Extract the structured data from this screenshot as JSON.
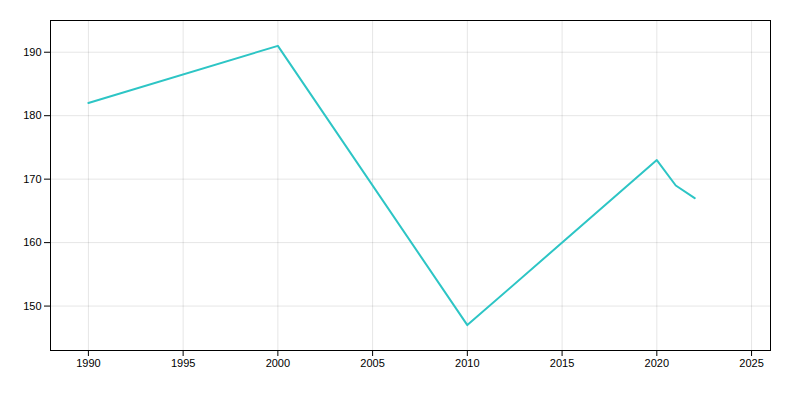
{
  "chart_data": {
    "type": "line",
    "x": [
      1990,
      2000,
      2010,
      2020,
      2021,
      2022
    ],
    "values": [
      182,
      191,
      147,
      173,
      169,
      167
    ],
    "color": "#2DC5C5",
    "xlim": [
      1988,
      2026
    ],
    "xticks": [
      1990,
      1995,
      2000,
      2005,
      2010,
      2015,
      2020,
      2025
    ],
    "ylim": [
      143,
      195
    ],
    "yticks": [
      150,
      160,
      170,
      180,
      190
    ],
    "grid": true
  }
}
